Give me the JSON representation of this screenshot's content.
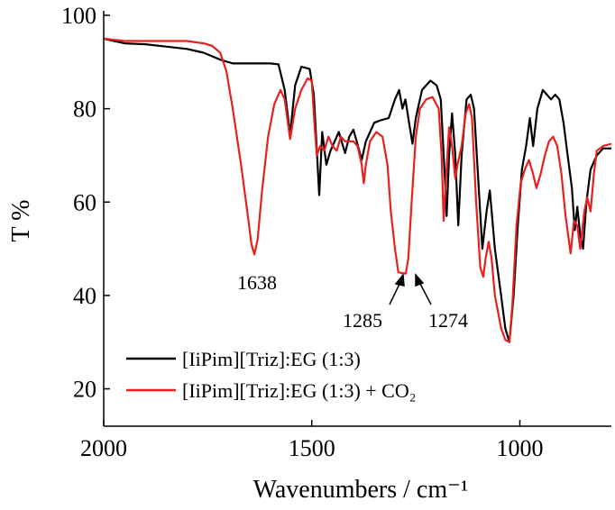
{
  "chart_data": {
    "type": "line",
    "xlabel": "Wavenumbers / cm⁻¹",
    "ylabel": "T %",
    "xlim": [
      2000,
      780
    ],
    "ylim": [
      12,
      100
    ],
    "xticks": [
      2000,
      1500,
      1000
    ],
    "yticks": [
      20,
      40,
      60,
      80,
      100
    ],
    "legend": "lower-left",
    "annotations": [
      "1638",
      "1285",
      "1274"
    ],
    "series": [
      {
        "name": "[IiPim][Triz]:EG (1:3)",
        "color": "#000000",
        "x": [
          2000,
          1950,
          1900,
          1850,
          1800,
          1760,
          1720,
          1690,
          1600,
          1580,
          1565,
          1552,
          1540,
          1525,
          1505,
          1495,
          1482,
          1475,
          1465,
          1455,
          1445,
          1435,
          1420,
          1410,
          1400,
          1392,
          1380,
          1370,
          1350,
          1335,
          1315,
          1300,
          1290,
          1282,
          1275,
          1268,
          1258,
          1250,
          1235,
          1215,
          1200,
          1190,
          1180,
          1176,
          1170,
          1163,
          1155,
          1148,
          1140,
          1128,
          1118,
          1110,
          1100,
          1090,
          1080,
          1072,
          1060,
          1045,
          1035,
          1025,
          1015,
          1005,
          995,
          985,
          976,
          968,
          958,
          945,
          935,
          925,
          915,
          905,
          895,
          885,
          875,
          868,
          862,
          855,
          848,
          840,
          830,
          815,
          800,
          780
        ],
        "values": [
          95,
          94,
          93.8,
          93.3,
          92.8,
          92,
          90.5,
          89.7,
          89.7,
          89.5,
          84,
          74.5,
          85,
          89,
          88.5,
          83,
          61.5,
          75,
          68,
          71,
          73,
          75,
          70.5,
          74,
          75.5,
          73,
          69,
          73,
          77,
          77.5,
          78,
          82,
          84,
          80,
          82,
          78,
          72.5,
          78,
          84,
          86,
          85,
          82,
          65,
          57,
          70,
          79,
          70,
          55,
          70,
          82,
          83,
          80,
          65,
          50,
          58,
          62.5,
          50,
          40,
          33,
          30,
          40,
          55,
          67,
          72,
          78,
          72,
          80,
          84,
          83,
          82,
          83,
          82,
          77,
          70,
          63,
          54,
          59,
          53,
          50,
          60,
          67,
          70,
          71.5,
          71.5
        ]
      },
      {
        "name": "[IiPim][Triz]:EG (1:3) + CO₂",
        "color": "#e8201e",
        "x": [
          2000,
          1950,
          1900,
          1850,
          1800,
          1760,
          1740,
          1720,
          1705,
          1690,
          1670,
          1655,
          1645,
          1638,
          1630,
          1620,
          1605,
          1590,
          1575,
          1565,
          1552,
          1540,
          1525,
          1510,
          1500,
          1493,
          1488,
          1480,
          1470,
          1460,
          1450,
          1440,
          1430,
          1420,
          1410,
          1400,
          1390,
          1380,
          1375,
          1370,
          1360,
          1345,
          1330,
          1318,
          1310,
          1300,
          1292,
          1285,
          1274,
          1268,
          1260,
          1250,
          1240,
          1225,
          1210,
          1195,
          1188,
          1183,
          1178,
          1170,
          1163,
          1155,
          1150,
          1140,
          1130,
          1122,
          1115,
          1105,
          1095,
          1088,
          1082,
          1075,
          1068,
          1060,
          1045,
          1035,
          1025,
          1018,
          1008,
          998,
          988,
          978,
          968,
          960,
          950,
          940,
          930,
          920,
          910,
          900,
          890,
          878,
          870,
          862,
          855,
          845,
          838,
          830,
          822,
          815,
          800,
          780
        ],
        "values": [
          95,
          94.5,
          94.5,
          94.5,
          94.5,
          94,
          93.5,
          92,
          88,
          80,
          68,
          58,
          51,
          48.8,
          52,
          62,
          74,
          81,
          84,
          82,
          73.5,
          80,
          84,
          86.5,
          86,
          76,
          70,
          72,
          71,
          74,
          72,
          71,
          74,
          73,
          73,
          73,
          72,
          68,
          64,
          68,
          73,
          75,
          74,
          68,
          58,
          50,
          45,
          44.8,
          44.7,
          48,
          60,
          74,
          80,
          82,
          82.5,
          80,
          70,
          56,
          64,
          76,
          72,
          65,
          68,
          72,
          79,
          81,
          78,
          60,
          46,
          44,
          48,
          51.5,
          48,
          40,
          33,
          30.5,
          30,
          38,
          55,
          64,
          67,
          69,
          66,
          63,
          66,
          70,
          73,
          74,
          72,
          66,
          57,
          49,
          56,
          55,
          50,
          58,
          61,
          58,
          66,
          71,
          72,
          72.5
        ]
      }
    ]
  }
}
